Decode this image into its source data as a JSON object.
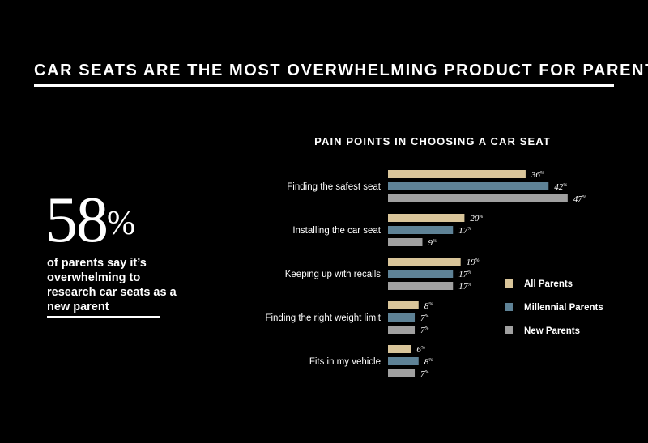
{
  "header": {
    "title": "CAR SEATS ARE THE MOST OVERWHELMING PRODUCT FOR PARENTS"
  },
  "stat": {
    "number": "58",
    "unit": "%",
    "text": "of parents say it’s overwhelming to research car seats as a new parent"
  },
  "colors": {
    "all": "#d9c59a",
    "millennial": "#5e8296",
    "new": "#a0a0a0"
  },
  "chart_data": {
    "type": "bar",
    "orientation": "horizontal",
    "title": "PAIN POINTS IN CHOOSING A CAR SEAT",
    "categories": [
      "Finding the safest seat",
      "Installing the car seat",
      "Keeping up with recalls",
      "Finding the right weight limit",
      "Fits in my vehicle"
    ],
    "series": [
      {
        "name": "All Parents",
        "values": [
          36,
          20,
          19,
          8,
          6
        ]
      },
      {
        "name": "Millennial Parents",
        "values": [
          42,
          17,
          17,
          7,
          8
        ]
      },
      {
        "name": "New Parents",
        "values": [
          47,
          9,
          17,
          7,
          7
        ]
      }
    ],
    "value_suffix": "%",
    "xlabel": "",
    "ylabel": "",
    "xlim": [
      0,
      50
    ],
    "grid": false,
    "legend": "right"
  }
}
